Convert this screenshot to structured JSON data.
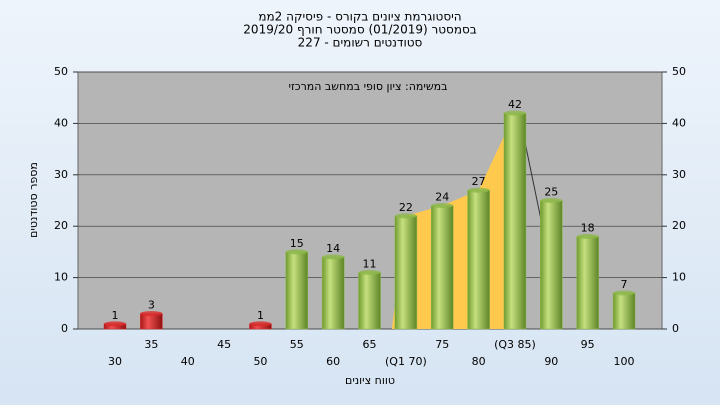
{
  "chart_data": {
    "type": "bar",
    "title": [
      "היסטוגרמת ציונים בקורס - פיסיקה 2ממ",
      "בסמסטר  (01/2019)  סמסטר חורף 2019/20",
      "סטודנטים רשומים - 227"
    ],
    "annotation": "במשימה: ציון סופי במחשב המרכזי",
    "x_label": "טווח ציונים",
    "y_label": "מספר סטודנטים",
    "categories": [
      "30",
      "35",
      "40",
      "45",
      "50",
      "55",
      "60",
      "65",
      "(Q1 70)",
      "75",
      "80",
      "(Q3 85)",
      "90",
      "95",
      "100"
    ],
    "values": [
      1,
      3,
      null,
      null,
      1,
      15,
      14,
      11,
      22,
      24,
      27,
      42,
      25,
      18,
      7
    ],
    "colors": [
      "#d92b2b",
      "#d92b2b",
      "#d92b2b",
      "#d92b2b",
      "#d92b2b",
      "#8cb84a",
      "#8cb84a",
      "#8cb84a",
      "#8cb84a",
      "#8cb84a",
      "#8cb84a",
      "#8cb84a",
      "#8cb84a",
      "#8cb84a",
      "#8cb84a"
    ],
    "ylim": [
      0,
      50
    ],
    "yticks": [
      0,
      10,
      20,
      30,
      40,
      50
    ],
    "y2lim": [
      0,
      50
    ],
    "y2ticks": [
      0,
      10,
      20,
      30,
      40,
      50
    ],
    "grid": true
  }
}
